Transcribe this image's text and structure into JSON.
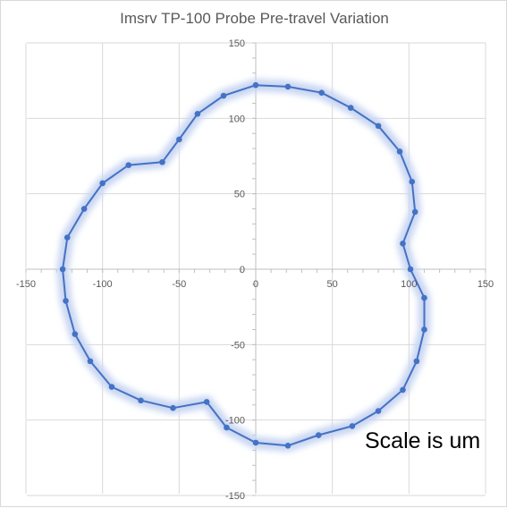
{
  "chart_data": {
    "type": "scatter",
    "title": "Imsrv TP-100 Probe Pre-travel Variation",
    "xlim": [
      -150,
      150
    ],
    "ylim": [
      -150,
      150
    ],
    "x_ticks": [
      -150,
      -100,
      -50,
      0,
      50,
      100,
      150
    ],
    "y_ticks": [
      -150,
      -100,
      -50,
      0,
      50,
      100,
      150
    ],
    "grid": true,
    "legend": "none",
    "line_color": "#4472c4",
    "glow_color": "#c9d6f2",
    "annotation": "Scale is um",
    "series": [
      {
        "name": "",
        "points": [
          [
            0,
            122
          ],
          [
            21,
            121
          ],
          [
            43,
            117
          ],
          [
            62,
            107
          ],
          [
            80,
            95
          ],
          [
            94,
            78
          ],
          [
            102,
            58
          ],
          [
            104,
            38
          ],
          [
            96,
            17
          ],
          [
            101,
            0
          ],
          [
            110,
            -19
          ],
          [
            110,
            -40
          ],
          [
            105,
            -61
          ],
          [
            96,
            -80
          ],
          [
            80,
            -94
          ],
          [
            63,
            -104
          ],
          [
            41,
            -110
          ],
          [
            21,
            -117
          ],
          [
            0,
            -115
          ],
          [
            -19,
            -105
          ],
          [
            -32,
            -88
          ],
          [
            -54,
            -92
          ],
          [
            -75,
            -87
          ],
          [
            -94,
            -78
          ],
          [
            -108,
            -61
          ],
          [
            -118,
            -43
          ],
          [
            -124,
            -21
          ],
          [
            -126,
            0
          ],
          [
            -123,
            21
          ],
          [
            -112,
            40
          ],
          [
            -100,
            57
          ],
          [
            -83,
            69
          ],
          [
            -61,
            71
          ],
          [
            -50,
            86
          ],
          [
            -38,
            103
          ],
          [
            -21,
            115
          ],
          [
            0,
            122
          ]
        ]
      }
    ]
  }
}
